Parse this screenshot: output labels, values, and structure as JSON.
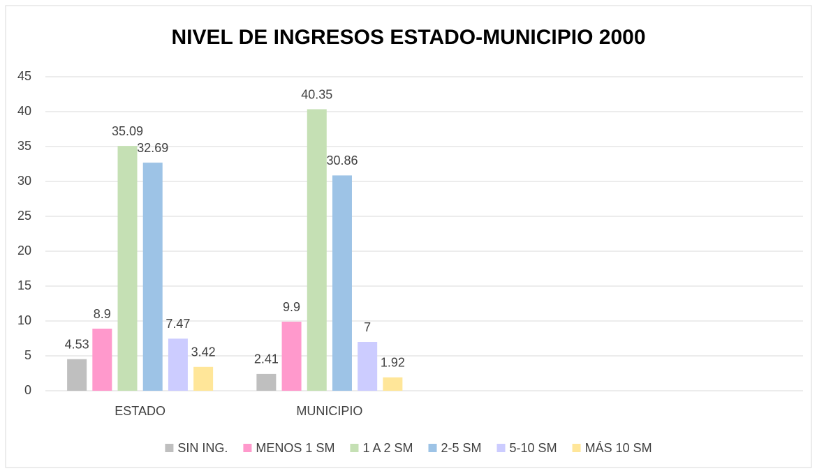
{
  "chart_data": {
    "type": "bar",
    "title": "NIVEL DE INGRESOS ESTADO-MUNICIPIO 2000",
    "categories": [
      "ESTADO",
      "MUNICIPIO",
      null,
      null
    ],
    "series": [
      {
        "name": "SIN ING.",
        "color": "#bfbfbf",
        "values": [
          4.53,
          2.41,
          null,
          null
        ]
      },
      {
        "name": "MENOS 1 SM",
        "color": "#ff99cc",
        "values": [
          8.9,
          9.9,
          null,
          null
        ]
      },
      {
        "name": "1 A 2 SM",
        "color": "#c5e0b4",
        "values": [
          35.09,
          40.35,
          null,
          null
        ]
      },
      {
        "name": "2-5 SM",
        "color": "#9dc3e6",
        "values": [
          32.69,
          30.86,
          null,
          null
        ]
      },
      {
        "name": "5-10 SM",
        "color": "#ccccff",
        "values": [
          7.47,
          7,
          null,
          null
        ]
      },
      {
        "name": "MÁS 10 SM",
        "color": "#ffe699",
        "values": [
          3.42,
          1.92,
          null,
          null
        ]
      }
    ],
    "ylim": [
      0,
      45
    ],
    "yticks": [
      0,
      5,
      10,
      15,
      20,
      25,
      30,
      35,
      40,
      45
    ],
    "grid": true,
    "legend": "bottom"
  }
}
